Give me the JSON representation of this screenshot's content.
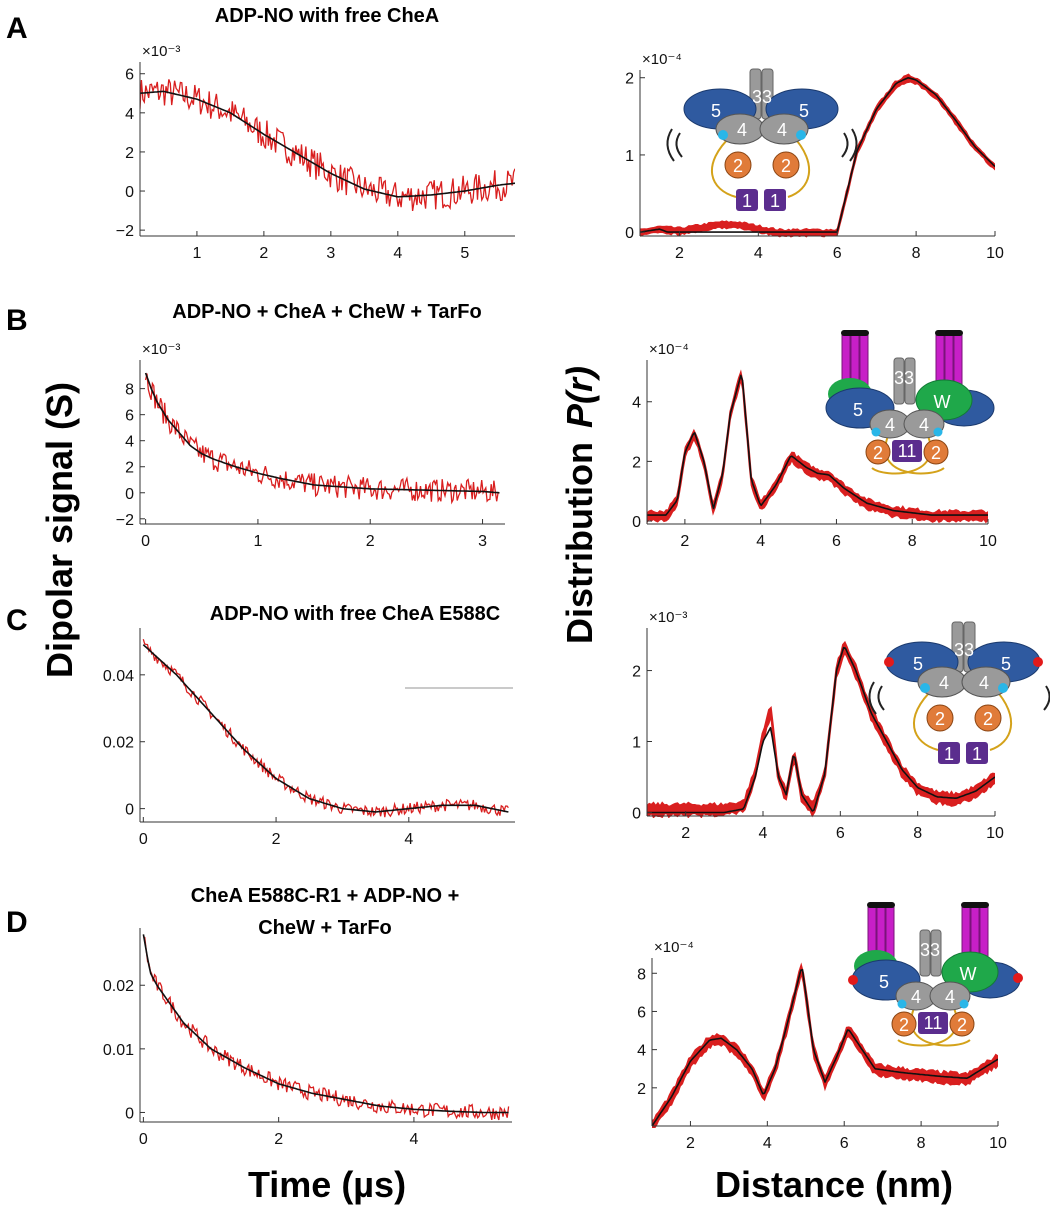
{
  "figure": {
    "x_label_time": "Time (µs)",
    "x_label_distance": "Distance (nm)",
    "y_label_left": "Dipolar signal (S)",
    "y_label_right_prefix": "Distribution",
    "y_label_right_symbol": "P(r)"
  },
  "colors": {
    "data": "#d91f1f",
    "fit": "#111111",
    "axis": "#333333",
    "domain5": "#2f5aa0",
    "domain4": "#9a9a9a",
    "domain3": "#9a9a9a",
    "domain2": "#e07b39",
    "domain1": "#5b2d8e",
    "cheW": "#1fa84a",
    "receptor": "#c71fc7",
    "spinlabel_blue": "#29b6e8",
    "spinlabel_red": "#e21a1a",
    "linker": "#d4a21a"
  },
  "chart_data": [
    {
      "id": "A-time",
      "type": "line",
      "panel": "A",
      "title": "ADP-NO with free CheA",
      "xlabel": "",
      "ylabel": "",
      "xlim": [
        0.15,
        5.75
      ],
      "ylim": [
        -2.3,
        6.6
      ],
      "xticks": [
        1,
        2,
        3,
        4,
        5
      ],
      "yticks": [
        -2,
        0,
        2,
        4,
        6
      ],
      "exponent": "×10⁻³",
      "series": [
        {
          "name": "experimental",
          "kind": "noisy",
          "noise": 0.8,
          "x": [
            0.15,
            0.5,
            1.0,
            1.5,
            2.0,
            2.5,
            3.0,
            3.5,
            4.0,
            4.5,
            5.0,
            5.5,
            5.75
          ],
          "y": [
            5.0,
            5.1,
            4.7,
            4.0,
            2.9,
            1.9,
            0.9,
            0.1,
            -0.3,
            -0.2,
            0.0,
            0.3,
            0.4
          ]
        },
        {
          "name": "fit",
          "kind": "line",
          "x": [
            0.15,
            0.5,
            1.0,
            1.5,
            2.0,
            2.5,
            3.0,
            3.5,
            4.0,
            4.5,
            5.0,
            5.5,
            5.75
          ],
          "y": [
            5.0,
            5.1,
            4.7,
            4.0,
            2.9,
            1.9,
            0.9,
            0.1,
            -0.3,
            -0.2,
            0.0,
            0.3,
            0.4
          ]
        }
      ]
    },
    {
      "id": "A-dist",
      "type": "line",
      "panel": "A",
      "title": "",
      "xlabel": "",
      "ylabel": "",
      "xlim": [
        1,
        10
      ],
      "ylim": [
        -0.05,
        2.1
      ],
      "xticks": [
        2,
        4,
        6,
        8,
        10
      ],
      "yticks": [
        0,
        1,
        2
      ],
      "exponent": "×10⁻⁴",
      "series": [
        {
          "name": "uncertainty",
          "kind": "band",
          "width": 0.05,
          "x": [
            1.0,
            1.5,
            2.0,
            2.5,
            3.0,
            3.5,
            4.0,
            4.5,
            5.0,
            5.5,
            6.0,
            6.5,
            7.0,
            7.5,
            7.8,
            8.0,
            8.5,
            9.0,
            9.5,
            10.0
          ],
          "y": [
            0,
            0.04,
            0.02,
            0.06,
            0.1,
            0.1,
            0.05,
            0,
            0,
            0,
            0,
            1.05,
            1.6,
            1.93,
            2.0,
            1.97,
            1.78,
            1.45,
            1.1,
            0.85
          ]
        },
        {
          "name": "fit",
          "kind": "line",
          "x": [
            1.0,
            1.5,
            1.7,
            2.0,
            3.0,
            4.0,
            5.0,
            6.0,
            6.5,
            7.0,
            7.5,
            7.8,
            8.0,
            8.5,
            9.0,
            9.5,
            10.0
          ],
          "y": [
            0,
            0.04,
            0,
            0,
            0,
            0,
            0,
            0,
            1.05,
            1.6,
            1.93,
            2.0,
            1.97,
            1.78,
            1.45,
            1.1,
            0.85
          ]
        }
      ]
    },
    {
      "id": "B-time",
      "type": "line",
      "panel": "B",
      "title": "ADP-NO + CheA + CheW + TarFo",
      "xlabel": "",
      "ylabel": "",
      "xlim": [
        -0.05,
        3.2
      ],
      "ylim": [
        -2.4,
        10.2
      ],
      "xticks": [
        0,
        1,
        2,
        3
      ],
      "yticks": [
        -2,
        0,
        2,
        4,
        6,
        8
      ],
      "exponent": "×10⁻³",
      "series": [
        {
          "name": "experimental",
          "kind": "noisy",
          "noise": 0.9,
          "x": [
            0,
            0.05,
            0.1,
            0.2,
            0.3,
            0.4,
            0.5,
            0.6,
            0.8,
            1.0,
            1.2,
            1.5,
            2.0,
            2.5,
            3.0,
            3.15
          ],
          "y": [
            9.2,
            8.0,
            7.0,
            5.6,
            4.6,
            3.6,
            3.0,
            2.6,
            2.0,
            1.5,
            1.1,
            0.6,
            0.3,
            0.2,
            0.1,
            0.0
          ]
        },
        {
          "name": "fit",
          "kind": "line",
          "x": [
            0,
            0.05,
            0.1,
            0.2,
            0.3,
            0.4,
            0.5,
            0.6,
            0.8,
            1.0,
            1.2,
            1.5,
            2.0,
            2.5,
            3.0,
            3.15
          ],
          "y": [
            9.2,
            8.0,
            7.0,
            5.6,
            4.6,
            3.6,
            3.0,
            2.6,
            2.0,
            1.5,
            1.1,
            0.6,
            0.3,
            0.2,
            0.1,
            0.0
          ]
        }
      ]
    },
    {
      "id": "B-dist",
      "type": "line",
      "panel": "B",
      "title": "",
      "xlabel": "",
      "ylabel": "",
      "xlim": [
        1,
        10
      ],
      "ylim": [
        -0.1,
        5.4
      ],
      "xticks": [
        2,
        4,
        6,
        8,
        10
      ],
      "yticks": [
        0,
        2,
        4
      ],
      "exponent": "×10⁻⁴",
      "series": [
        {
          "name": "uncertainty",
          "kind": "band",
          "width": 0.2,
          "x": [
            1.0,
            1.5,
            1.8,
            2.0,
            2.25,
            2.5,
            2.75,
            3.0,
            3.2,
            3.5,
            3.75,
            4.0,
            4.4,
            4.8,
            5.2,
            5.5,
            5.8,
            6.2,
            6.8,
            7.5,
            8.5,
            10.0
          ],
          "y": [
            0.2,
            0.2,
            0.7,
            2.3,
            3.0,
            2.0,
            0.4,
            1.6,
            3.6,
            5.0,
            1.4,
            0.5,
            1.2,
            2.2,
            1.8,
            1.6,
            1.55,
            1.1,
            0.6,
            0.35,
            0.2,
            0.2
          ]
        },
        {
          "name": "fit",
          "kind": "line",
          "x": [
            1.0,
            1.5,
            1.8,
            2.0,
            2.25,
            2.5,
            2.75,
            3.0,
            3.2,
            3.5,
            3.75,
            4.0,
            4.4,
            4.8,
            5.2,
            5.5,
            5.8,
            6.2,
            6.8,
            7.5,
            8.5,
            10.0
          ],
          "y": [
            0.2,
            0.2,
            0.7,
            2.3,
            3.0,
            2.0,
            0.4,
            1.6,
            3.6,
            5.0,
            1.4,
            0.5,
            1.2,
            2.2,
            1.8,
            1.6,
            1.55,
            1.1,
            0.6,
            0.35,
            0.2,
            0.2
          ]
        }
      ]
    },
    {
      "id": "C-time",
      "type": "line",
      "panel": "C",
      "title": "ADP-NO with free CheA E588C",
      "xlabel": "",
      "ylabel": "",
      "xlim": [
        -0.05,
        5.6
      ],
      "ylim": [
        -0.004,
        0.054
      ],
      "xticks": [
        0,
        2,
        4
      ],
      "yticks": [
        0,
        0.02,
        0.04
      ],
      "exponent": "",
      "series": [
        {
          "name": "experimental",
          "kind": "noisy",
          "noise": 0.0018,
          "x": [
            0,
            0.5,
            1.0,
            1.5,
            2.0,
            2.5,
            3.0,
            3.5,
            4.0,
            4.5,
            5.0,
            5.5
          ],
          "y": [
            0.049,
            0.04,
            0.029,
            0.018,
            0.009,
            0.003,
            0.0,
            -0.001,
            0.0,
            0.001,
            0.001,
            -0.001
          ]
        },
        {
          "name": "fit",
          "kind": "line",
          "x": [
            0,
            0.5,
            1.0,
            1.5,
            2.0,
            2.5,
            3.0,
            3.5,
            4.0,
            4.5,
            5.0,
            5.5
          ],
          "y": [
            0.049,
            0.04,
            0.029,
            0.018,
            0.009,
            0.003,
            0.0,
            -0.001,
            0.0,
            0.001,
            0.001,
            -0.001
          ]
        }
      ]
    },
    {
      "id": "C-dist",
      "type": "line",
      "panel": "C",
      "title": "",
      "xlabel": "",
      "ylabel": "",
      "xlim": [
        1,
        10
      ],
      "ylim": [
        -0.05,
        2.6
      ],
      "xticks": [
        2,
        4,
        6,
        8,
        10
      ],
      "yticks": [
        0,
        1,
        2
      ],
      "exponent": "×10⁻³",
      "series": [
        {
          "name": "uncertainty",
          "kind": "band",
          "width": 0.1,
          "x": [
            1.0,
            2.0,
            3.0,
            3.5,
            3.8,
            4.0,
            4.2,
            4.4,
            4.6,
            4.8,
            5.0,
            5.3,
            5.6,
            5.9,
            6.1,
            6.4,
            6.8,
            7.2,
            7.6,
            8.0,
            8.5,
            9.0,
            9.5,
            10.0
          ],
          "y": [
            0.05,
            0.05,
            0.05,
            0.1,
            0.55,
            1.1,
            1.45,
            0.5,
            0.25,
            0.85,
            0.25,
            0.05,
            0.55,
            2.0,
            2.35,
            2.0,
            1.4,
            1.0,
            0.6,
            0.35,
            0.22,
            0.2,
            0.3,
            0.5
          ]
        },
        {
          "name": "fit",
          "kind": "line",
          "x": [
            1.0,
            2.0,
            3.0,
            3.5,
            3.8,
            4.0,
            4.2,
            4.4,
            4.6,
            4.8,
            5.0,
            5.3,
            5.6,
            5.9,
            6.1,
            6.4,
            6.8,
            7.2,
            7.6,
            8.0,
            8.5,
            9.0,
            9.5,
            10.0
          ],
          "y": [
            0.0,
            0.0,
            0.0,
            0.05,
            0.5,
            1.0,
            1.2,
            0.5,
            0.25,
            0.85,
            0.25,
            0.0,
            0.55,
            2.0,
            2.35,
            2.0,
            1.4,
            1.0,
            0.6,
            0.35,
            0.22,
            0.2,
            0.3,
            0.5
          ]
        }
      ]
    },
    {
      "id": "D-time",
      "type": "line",
      "panel": "D",
      "title": "CheA E588C-R1 + ADP-NO + CheW + TarFo",
      "xlabel": "",
      "ylabel": "",
      "xlim": [
        -0.05,
        5.45
      ],
      "ylim": [
        -0.0015,
        0.029
      ],
      "xticks": [
        0,
        2,
        4
      ],
      "yticks": [
        0,
        0.01,
        0.02
      ],
      "exponent": "",
      "series": [
        {
          "name": "experimental",
          "kind": "noisy",
          "noise": 0.0012,
          "x": [
            0,
            0.1,
            0.2,
            0.4,
            0.6,
            0.8,
            1.0,
            1.5,
            2.0,
            2.5,
            3.0,
            3.5,
            4.0,
            4.5,
            5.0,
            5.4
          ],
          "y": [
            0.028,
            0.022,
            0.02,
            0.017,
            0.014,
            0.012,
            0.01,
            0.007,
            0.0045,
            0.003,
            0.002,
            0.001,
            0.0005,
            0.0002,
            0.0,
            0.0
          ]
        },
        {
          "name": "fit",
          "kind": "line",
          "x": [
            0,
            0.1,
            0.2,
            0.4,
            0.6,
            0.8,
            1.0,
            1.5,
            2.0,
            2.5,
            3.0,
            3.5,
            4.0,
            4.5,
            5.0,
            5.4
          ],
          "y": [
            0.028,
            0.022,
            0.02,
            0.017,
            0.014,
            0.012,
            0.01,
            0.007,
            0.0045,
            0.003,
            0.002,
            0.001,
            0.0005,
            0.0002,
            0.0,
            0.0
          ]
        }
      ]
    },
    {
      "id": "D-dist",
      "type": "line",
      "panel": "D",
      "title": "",
      "xlabel": "",
      "ylabel": "",
      "xlim": [
        1,
        10
      ],
      "ylim": [
        0,
        8.8
      ],
      "xticks": [
        2,
        4,
        6,
        8,
        10
      ],
      "yticks": [
        2,
        4,
        6,
        8
      ],
      "exponent": "×10⁻⁴",
      "series": [
        {
          "name": "uncertainty",
          "kind": "band",
          "width": 0.35,
          "x": [
            1.0,
            1.5,
            2.0,
            2.5,
            2.8,
            3.2,
            3.6,
            3.9,
            4.2,
            4.5,
            4.9,
            5.2,
            5.5,
            5.8,
            6.1,
            6.4,
            6.8,
            7.5,
            8.5,
            9.2,
            10.0
          ],
          "y": [
            0.0,
            1.5,
            3.4,
            4.5,
            4.6,
            4.0,
            3.0,
            1.6,
            3.0,
            5.2,
            8.4,
            4.0,
            2.3,
            3.6,
            5.1,
            4.2,
            3.0,
            2.8,
            2.6,
            2.5,
            3.5
          ]
        },
        {
          "name": "fit",
          "kind": "line",
          "x": [
            1.0,
            1.5,
            2.0,
            2.5,
            2.8,
            3.2,
            3.6,
            3.9,
            4.2,
            4.5,
            4.9,
            5.2,
            5.5,
            5.8,
            6.1,
            6.4,
            6.8,
            7.5,
            8.5,
            9.2,
            10.0
          ],
          "y": [
            0.0,
            1.5,
            3.4,
            4.5,
            4.6,
            4.0,
            3.0,
            1.6,
            3.0,
            5.2,
            8.4,
            4.0,
            2.3,
            3.6,
            5.1,
            4.2,
            3.0,
            2.8,
            2.6,
            2.5,
            3.5
          ]
        }
      ]
    }
  ],
  "panels": [
    {
      "letter": "A",
      "title": "ADP-NO with free CheA"
    },
    {
      "letter": "B",
      "title": "ADP-NO + CheA + CheW + TarFo"
    },
    {
      "letter": "C",
      "title": "ADP-NO with free CheA E588C"
    },
    {
      "letter": "D",
      "title_line1": "CheA E588C-R1 + ADP-NO +",
      "title_line2": "CheW + TarFo"
    }
  ],
  "cartoon_labels": {
    "d5": "5",
    "d4": "4",
    "d3": "33",
    "d2": "2",
    "d1": "1",
    "w": "W",
    "d1_pair": "11"
  }
}
